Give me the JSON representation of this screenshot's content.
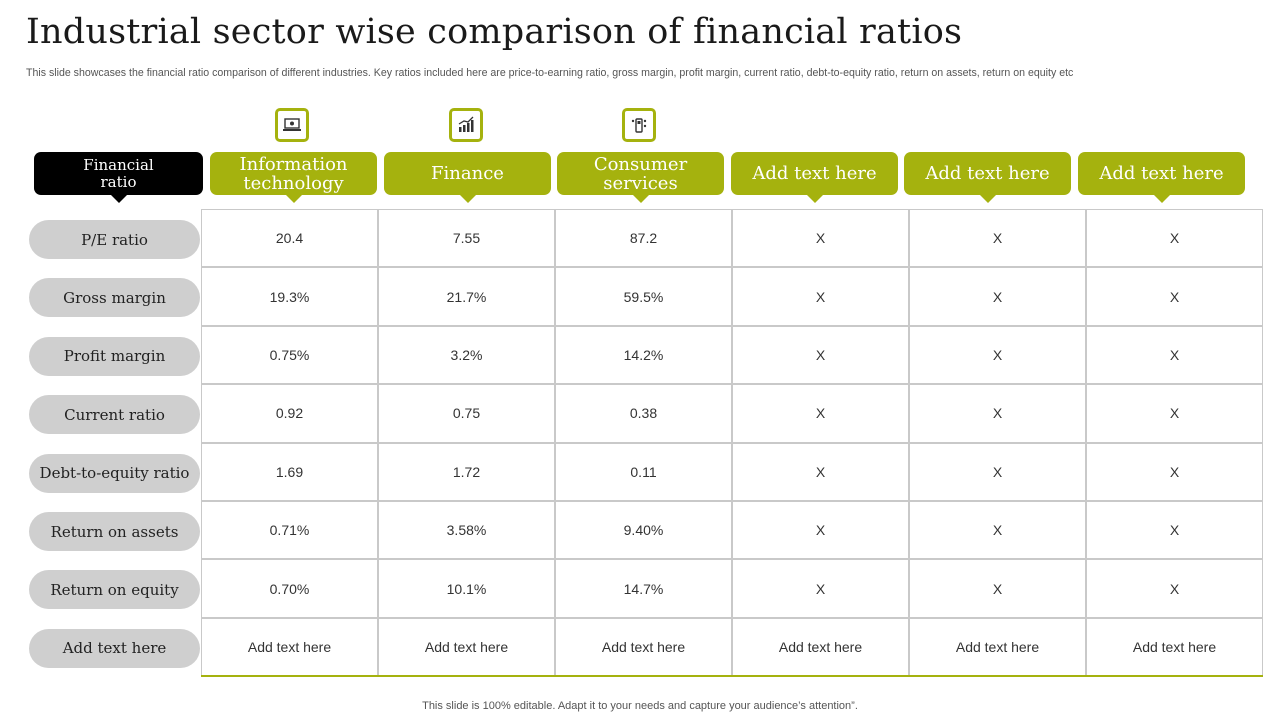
{
  "title": "Industrial sector wise comparison of financial ratios",
  "subtitle": "This slide showcases the financial ratio comparison of different industries. Key ratios included here are price-to-earning ratio, gross margin, profit margin, current ratio, debt-to-equity ratio, return on assets, return on equity etc",
  "footer": "This slide is 100% editable. Adapt it to your needs and capture your audience’s attention”.",
  "colors": {
    "accent": "#a5b20e",
    "header_dark": "#000000",
    "row_label_bg": "#cfcfcf",
    "grid_border": "#c9c9c9"
  },
  "icons": [
    "computer-icon",
    "growth-chart-icon",
    "customer-service-icon"
  ],
  "header_first": {
    "line1": "Financial",
    "line2": "ratio"
  },
  "columns": [
    {
      "line1": "Information",
      "line2": "technology"
    },
    {
      "line1": "Finance",
      "line2": ""
    },
    {
      "line1": "Consumer",
      "line2": "services"
    },
    {
      "line1": "Add text here",
      "line2": ""
    },
    {
      "line1": "Add text here",
      "line2": ""
    },
    {
      "line1": "Add text here",
      "line2": ""
    }
  ],
  "rows": [
    {
      "label": "P/E ratio",
      "values": [
        "20.4",
        "7.55",
        "87.2",
        "X",
        "X",
        "X"
      ]
    },
    {
      "label": "Gross margin",
      "values": [
        "19.3%",
        "21.7%",
        "59.5%",
        "X",
        "X",
        "X"
      ]
    },
    {
      "label": "Profit margin",
      "values": [
        "0.75%",
        "3.2%",
        "14.2%",
        "X",
        "X",
        "X"
      ]
    },
    {
      "label": "Current ratio",
      "values": [
        "0.92",
        "0.75",
        "0.38",
        "X",
        "X",
        "X"
      ]
    },
    {
      "label": "Debt-to-equity ratio",
      "values": [
        "1.69",
        "1.72",
        "0.11",
        "X",
        "X",
        "X"
      ]
    },
    {
      "label": "Return on assets",
      "values": [
        "0.71%",
        "3.58%",
        "9.40%",
        "X",
        "X",
        "X"
      ]
    },
    {
      "label": "Return on equity",
      "values": [
        "0.70%",
        "10.1%",
        "14.7%",
        "X",
        "X",
        "X"
      ]
    },
    {
      "label": "Add text here",
      "values": [
        "Add text here",
        "Add text here",
        "Add text here",
        "Add text here",
        "Add text here",
        "Add text here"
      ]
    }
  ]
}
